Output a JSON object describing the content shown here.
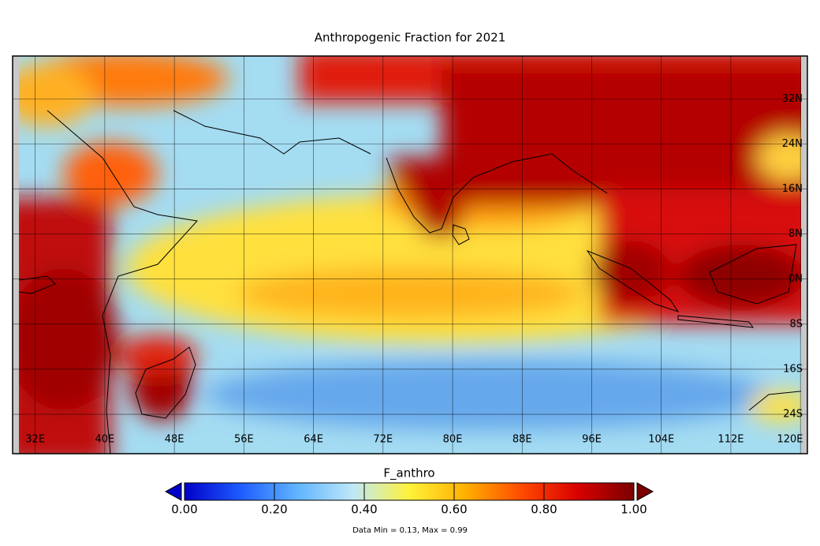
{
  "chart_data": {
    "type": "map",
    "title": "Anthropogenic Fraction for 2021",
    "lonlim": [
      29.4,
      120.8
    ],
    "latlim": [
      -31,
      39.6
    ],
    "lonticks": [
      {
        "value": 32,
        "label": "32E"
      },
      {
        "value": 40,
        "label": "40E"
      },
      {
        "value": 48,
        "label": "48E"
      },
      {
        "value": 56,
        "label": "56E"
      },
      {
        "value": 64,
        "label": "64E"
      },
      {
        "value": 72,
        "label": "72E"
      },
      {
        "value": 80,
        "label": "80E"
      },
      {
        "value": 88,
        "label": "88E"
      },
      {
        "value": 96,
        "label": "96E"
      },
      {
        "value": 104,
        "label": "104E"
      },
      {
        "value": 112,
        "label": "112E"
      },
      {
        "value": 120,
        "label": "120E"
      }
    ],
    "latticks": [
      {
        "value": 32,
        "label": "32N"
      },
      {
        "value": 24,
        "label": "24N"
      },
      {
        "value": 16,
        "label": "16N"
      },
      {
        "value": 8,
        "label": "8N"
      },
      {
        "value": 0,
        "label": "0N"
      },
      {
        "value": -8,
        "label": "8S"
      },
      {
        "value": -16,
        "label": "16S"
      },
      {
        "value": -24,
        "label": "24S"
      }
    ],
    "grid": true,
    "colorbar": {
      "label": "F_anthro",
      "lim": [
        0,
        1
      ],
      "ticks": [
        {
          "value": 0,
          "label": "0.00"
        },
        {
          "value": 0.2,
          "label": "0.20"
        },
        {
          "value": 0.4,
          "label": "0.40"
        },
        {
          "value": 0.6,
          "label": "0.60"
        },
        {
          "value": 0.8,
          "label": "0.80"
        },
        {
          "value": 1,
          "label": "1.00"
        }
      ],
      "colors": [
        "#0000c8",
        "#1e5cff",
        "#5fb4ff",
        "#bfe8f8",
        "#fff23a",
        "#ffb000",
        "#ff4a00",
        "#d80000",
        "#7a0000"
      ],
      "under_color": "#0000c8",
      "over_color": "#7a0000"
    },
    "stats": "Data Min = 0.13, Max = 0.99"
  }
}
